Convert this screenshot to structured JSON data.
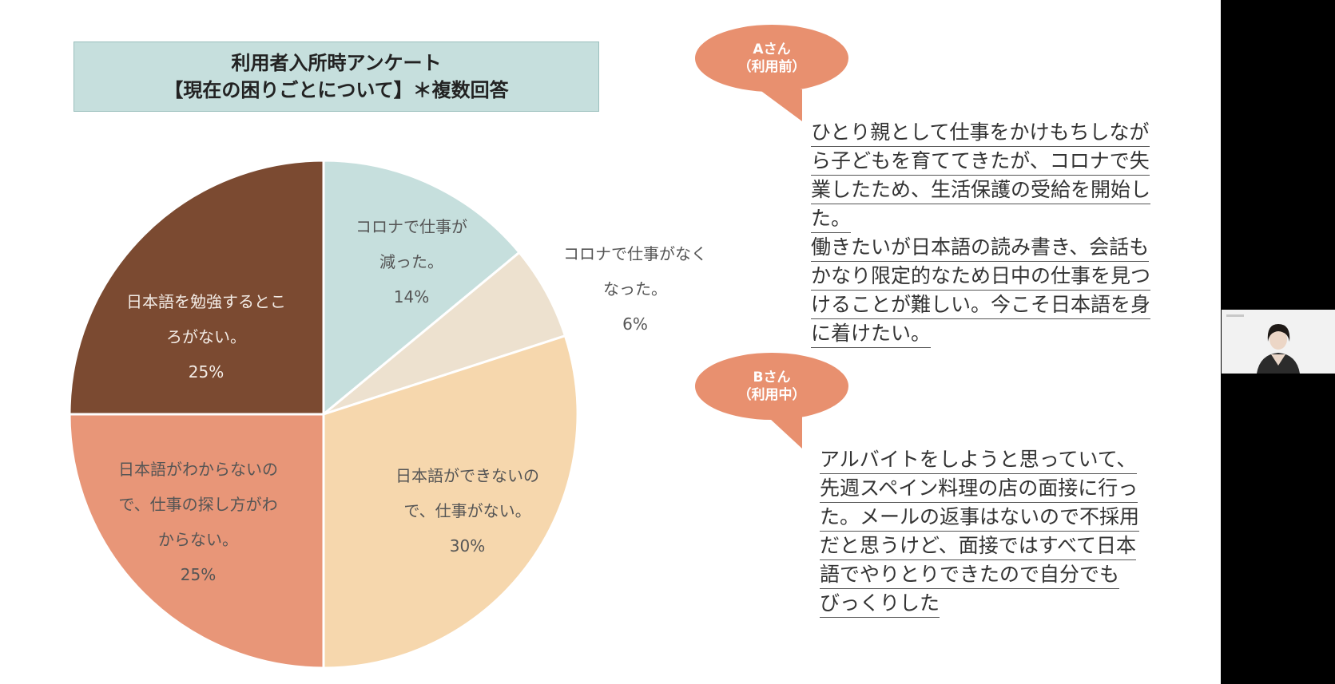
{
  "title": {
    "line1": "利用者入所時アンケート",
    "line2": "【現在の困りごとについて】＊複数回答"
  },
  "chart_data": {
    "type": "pie",
    "slices": [
      {
        "label": "コロナで仕事が減った。",
        "lines": [
          "コロナで仕事が",
          "減った。"
        ],
        "value": 14,
        "display": "14%",
        "color": "#c6dfdd"
      },
      {
        "label": "コロナで仕事がなくなった。",
        "lines": [
          "コロナで仕事がなく",
          "なった。"
        ],
        "value": 6,
        "display": "6%",
        "color": "#ede1cf"
      },
      {
        "label": "日本語ができないので、仕事がない。",
        "lines": [
          "日本語ができないの",
          "で、仕事がない。"
        ],
        "value": 30,
        "display": "30%",
        "color": "#f6d7ad"
      },
      {
        "label": "日本語がわからないので、仕事の探し方がわからない。",
        "lines": [
          "日本語がわからないの",
          "で、仕事の探し方がわ",
          "からない。"
        ],
        "value": 25,
        "display": "25%",
        "color": "#e89678"
      },
      {
        "label": "日本語を勉強するところがない。",
        "lines": [
          "日本語を勉強するとこ",
          "ろがない。"
        ],
        "value": 25,
        "display": "25%",
        "color": "#7b4a31"
      }
    ]
  },
  "bubble_a": {
    "name": "Aさん",
    "status": "（利用前）",
    "color": "#e8906f"
  },
  "quote_a": [
    "ひとり親として仕事をかけもちしなが",
    "ら子どもを育ててきたが、コロナで失",
    "業したため、生活保護の受給を開始し",
    "た。",
    "働きたいが日本語の読み書き、会話も",
    "かなり限定的なため日中の仕事を見つ",
    "けることが難しい。今こそ日本語を身",
    "に着けたい。"
  ],
  "bubble_b": {
    "name": "Bさん",
    "status": "（利用中）",
    "color": "#e8906f"
  },
  "quote_b": [
    "アルバイトをしようと思っていて、",
    "先週スペイン料理の店の面接に行っ",
    "た。メールの返事はないので不採用",
    "だと思うけど、面接ではすべて日本",
    "語でやりとりできたので自分でも",
    "びっくりした"
  ]
}
